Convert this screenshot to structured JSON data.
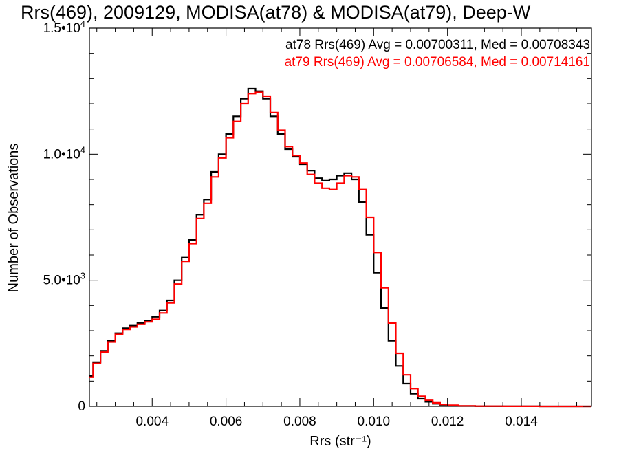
{
  "chart_data": {
    "type": "line",
    "title": "Rrs(469), 2009129, MODISA(at78) & MODISA(at79), Deep-W",
    "xlabel": "Rrs (str⁻¹)",
    "ylabel": "Number of Observations",
    "xlim": [
      0.0023,
      0.0159
    ],
    "ylim": [
      0,
      15000
    ],
    "x_ticks": [
      {
        "value": 0.004,
        "label": "0.004"
      },
      {
        "value": 0.006,
        "label": "0.006"
      },
      {
        "value": 0.008,
        "label": "0.008"
      },
      {
        "value": 0.01,
        "label": "0.010"
      },
      {
        "value": 0.012,
        "label": "0.012"
      },
      {
        "value": 0.014,
        "label": "0.014"
      }
    ],
    "y_ticks": [
      {
        "value": 0,
        "mantissa": "0",
        "exponent": ""
      },
      {
        "value": 5000,
        "mantissa": "5.0•10",
        "exponent": "3"
      },
      {
        "value": 10000,
        "mantissa": "1.0•10",
        "exponent": "4"
      },
      {
        "value": 15000,
        "mantissa": "1.5•10",
        "exponent": "4"
      }
    ],
    "grid": false,
    "step": true,
    "annotations": [
      {
        "text": "at78 Rrs(469) Avg = 0.00700311, Med = 0.00708343",
        "color": "#000000"
      },
      {
        "text": "at79 Rrs(469) Avg = 0.00706584, Med = 0.00714161",
        "color": "#ff0000"
      }
    ],
    "series": [
      {
        "color": "#000000",
        "points": [
          [
            0.0023,
            1200
          ],
          [
            0.0025,
            1750
          ],
          [
            0.0027,
            2200
          ],
          [
            0.0029,
            2600
          ],
          [
            0.0031,
            2900
          ],
          [
            0.0033,
            3100
          ],
          [
            0.0035,
            3200
          ],
          [
            0.0037,
            3300
          ],
          [
            0.0039,
            3400
          ],
          [
            0.0041,
            3550
          ],
          [
            0.0043,
            3800
          ],
          [
            0.0045,
            4200
          ],
          [
            0.0047,
            5000
          ],
          [
            0.0049,
            5900
          ],
          [
            0.0051,
            6600
          ],
          [
            0.0053,
            7600
          ],
          [
            0.0055,
            8200
          ],
          [
            0.0057,
            9300
          ],
          [
            0.0059,
            10000
          ],
          [
            0.0061,
            10800
          ],
          [
            0.0063,
            11500
          ],
          [
            0.0065,
            12200
          ],
          [
            0.0067,
            12600
          ],
          [
            0.0069,
            12500
          ],
          [
            0.0071,
            12200
          ],
          [
            0.0073,
            11500
          ],
          [
            0.0075,
            10800
          ],
          [
            0.0077,
            10200
          ],
          [
            0.0079,
            9900
          ],
          [
            0.0081,
            9600
          ],
          [
            0.0083,
            9350
          ],
          [
            0.0085,
            9050
          ],
          [
            0.0087,
            8950
          ],
          [
            0.0089,
            9000
          ],
          [
            0.0091,
            9150
          ],
          [
            0.0093,
            9250
          ],
          [
            0.0095,
            9000
          ],
          [
            0.0097,
            8100
          ],
          [
            0.0099,
            6800
          ],
          [
            0.0101,
            5300
          ],
          [
            0.0103,
            3900
          ],
          [
            0.0105,
            2600
          ],
          [
            0.0107,
            1600
          ],
          [
            0.0109,
            900
          ],
          [
            0.0111,
            500
          ],
          [
            0.0113,
            300
          ],
          [
            0.0115,
            180
          ],
          [
            0.0117,
            100
          ],
          [
            0.0119,
            60
          ],
          [
            0.0121,
            35
          ],
          [
            0.0125,
            15
          ],
          [
            0.013,
            6
          ],
          [
            0.014,
            3
          ],
          [
            0.015,
            1
          ],
          [
            0.0159,
            0
          ]
        ]
      },
      {
        "color": "#ff0000",
        "points": [
          [
            0.0023,
            1150
          ],
          [
            0.0025,
            1700
          ],
          [
            0.0027,
            2150
          ],
          [
            0.0029,
            2550
          ],
          [
            0.0031,
            2850
          ],
          [
            0.0033,
            3050
          ],
          [
            0.0035,
            3150
          ],
          [
            0.0037,
            3250
          ],
          [
            0.0039,
            3350
          ],
          [
            0.0041,
            3450
          ],
          [
            0.0043,
            3700
          ],
          [
            0.0045,
            4100
          ],
          [
            0.0047,
            4850
          ],
          [
            0.0049,
            5750
          ],
          [
            0.0051,
            6450
          ],
          [
            0.0053,
            7450
          ],
          [
            0.0055,
            8050
          ],
          [
            0.0057,
            9100
          ],
          [
            0.0059,
            9850
          ],
          [
            0.0061,
            10650
          ],
          [
            0.0063,
            11300
          ],
          [
            0.0065,
            12000
          ],
          [
            0.0067,
            12400
          ],
          [
            0.0069,
            12450
          ],
          [
            0.0071,
            12300
          ],
          [
            0.0073,
            11650
          ],
          [
            0.0075,
            10950
          ],
          [
            0.0077,
            10300
          ],
          [
            0.0079,
            9950
          ],
          [
            0.0081,
            9650
          ],
          [
            0.0083,
            9200
          ],
          [
            0.0085,
            8850
          ],
          [
            0.0087,
            8650
          ],
          [
            0.0089,
            8600
          ],
          [
            0.0091,
            8850
          ],
          [
            0.0093,
            9150
          ],
          [
            0.0095,
            9100
          ],
          [
            0.0097,
            8600
          ],
          [
            0.0099,
            7500
          ],
          [
            0.0101,
            6100
          ],
          [
            0.0103,
            4700
          ],
          [
            0.0105,
            3300
          ],
          [
            0.0107,
            2100
          ],
          [
            0.0109,
            1250
          ],
          [
            0.0111,
            700
          ],
          [
            0.0113,
            400
          ],
          [
            0.0115,
            240
          ],
          [
            0.0117,
            140
          ],
          [
            0.0119,
            80
          ],
          [
            0.0121,
            45
          ],
          [
            0.0125,
            20
          ],
          [
            0.013,
            8
          ],
          [
            0.014,
            3
          ],
          [
            0.015,
            1
          ],
          [
            0.0159,
            0
          ]
        ]
      }
    ]
  }
}
